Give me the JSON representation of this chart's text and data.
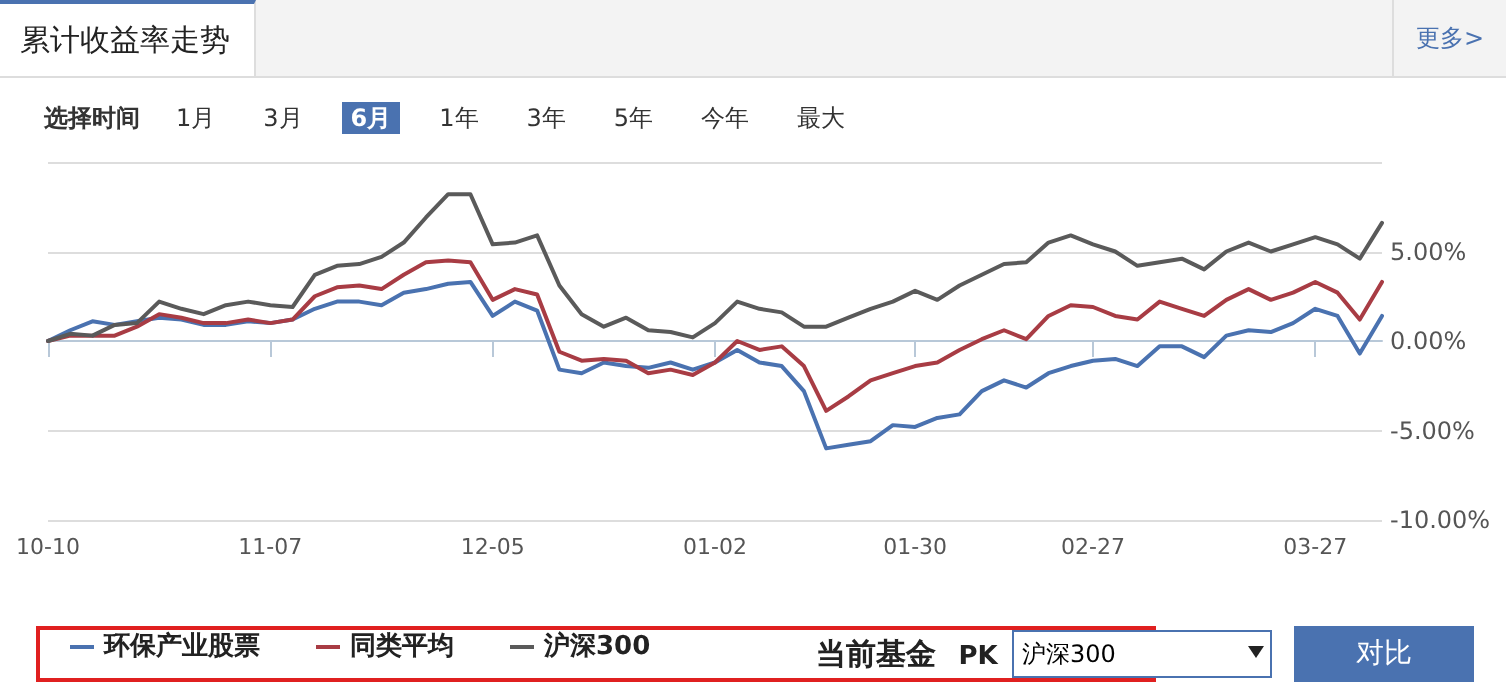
{
  "chart_data": {
    "type": "line",
    "title": "累计收益率走势",
    "annotations": [
      "更多>",
      "选择时间",
      "1月",
      "3月",
      "6月",
      "1年",
      "3年",
      "5年",
      "今年",
      "最大",
      "当前基金",
      "PK",
      "沪深300",
      "对比"
    ],
    "categories": [
      "10-10",
      null,
      null,
      null,
      null,
      null,
      null,
      null,
      null,
      null,
      "11-07",
      null,
      null,
      null,
      null,
      null,
      null,
      null,
      null,
      null,
      "12-05",
      null,
      null,
      null,
      null,
      null,
      null,
      null,
      null,
      null,
      "01-02",
      null,
      null,
      null,
      null,
      null,
      null,
      null,
      null,
      "01-30",
      null,
      null,
      null,
      null,
      null,
      null,
      null,
      "02-27",
      null,
      null,
      null,
      null,
      null,
      null,
      null,
      null,
      null,
      "03-27",
      null,
      null,
      null
    ],
    "series": [
      {
        "name": "环保产业股票",
        "color": "#4a72b0",
        "values": [
          0,
          0.6,
          1.1,
          0.9,
          1.1,
          1.3,
          1.2,
          0.9,
          0.9,
          1.1,
          1.0,
          1.2,
          1.8,
          2.2,
          2.2,
          2.0,
          2.7,
          2.9,
          3.2,
          3.3,
          1.4,
          2.2,
          1.7,
          -1.6,
          -1.8,
          -1.2,
          -1.4,
          -1.5,
          -1.2,
          -1.6,
          -1.2,
          -0.5,
          -1.2,
          -1.4,
          -2.8,
          -6.0,
          -5.8,
          -5.6,
          -4.7,
          -4.8,
          -4.3,
          -4.1,
          -2.8,
          -2.2,
          -2.6,
          -1.8,
          -1.4,
          -1.1,
          -1.0,
          -1.4,
          -0.3,
          -0.3,
          -0.9,
          0.3,
          0.6,
          0.5,
          1.0,
          1.8,
          1.4,
          -0.7,
          1.4
        ]
      },
      {
        "name": "同类平均",
        "color": "#a83c44",
        "values": [
          0,
          0.3,
          0.3,
          0.3,
          0.8,
          1.5,
          1.3,
          1.0,
          1.0,
          1.2,
          1.0,
          1.2,
          2.5,
          3.0,
          3.1,
          2.9,
          3.7,
          4.4,
          4.5,
          4.4,
          2.3,
          2.9,
          2.6,
          -0.6,
          -1.1,
          -1.0,
          -1.1,
          -1.8,
          -1.6,
          -1.9,
          -1.2,
          0,
          -0.5,
          -0.3,
          -1.4,
          -3.9,
          -3.1,
          -2.2,
          -1.8,
          -1.4,
          -1.2,
          -0.5,
          0.1,
          0.6,
          0.1,
          1.4,
          2.0,
          1.9,
          1.4,
          1.2,
          2.2,
          1.8,
          1.4,
          2.3,
          2.9,
          2.3,
          2.7,
          3.3,
          2.7,
          1.2,
          3.3
        ]
      },
      {
        "name": "沪深300",
        "color": "#5a5a5a",
        "values": [
          0,
          0.4,
          0.3,
          0.9,
          1.0,
          2.2,
          1.8,
          1.5,
          2.0,
          2.2,
          2.0,
          1.9,
          3.7,
          4.2,
          4.3,
          4.7,
          5.5,
          6.9,
          8.2,
          8.2,
          5.4,
          5.5,
          5.9,
          3.1,
          1.5,
          0.8,
          1.3,
          0.6,
          0.5,
          0.2,
          1.0,
          2.2,
          1.8,
          1.6,
          0.8,
          0.8,
          1.3,
          1.8,
          2.2,
          2.8,
          2.3,
          3.1,
          3.7,
          4.3,
          4.4,
          5.5,
          5.9,
          5.4,
          5.0,
          4.2,
          4.4,
          4.6,
          4.0,
          5.0,
          5.5,
          5.0,
          5.4,
          5.8,
          5.4,
          4.6,
          6.6
        ]
      }
    ],
    "ylim": [
      -10,
      10
    ],
    "yticks": [
      {
        "value": -10,
        "label": "-10.00%"
      },
      {
        "value": -5,
        "label": "-5.00%"
      },
      {
        "value": 0,
        "label": "0.00%"
      },
      {
        "value": 5,
        "label": "5.00%"
      },
      {
        "value": 10,
        "label": null
      }
    ],
    "grid": "y",
    "legend": "bottom left",
    "marker": "none",
    "line_style": "solid"
  }
}
